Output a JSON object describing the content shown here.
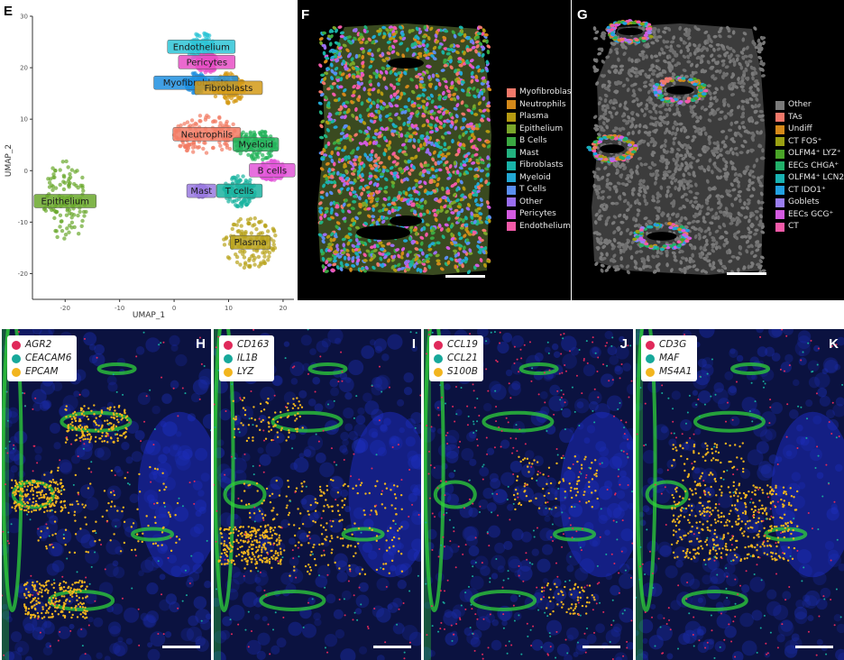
{
  "panel_e": {
    "label": "E",
    "chart_data": {
      "type": "scatter",
      "xlabel": "UMAP_1",
      "ylabel": "UMAP_2",
      "xlim": [
        -26,
        22
      ],
      "ylim": [
        -25,
        30
      ],
      "xticks": [
        "-20",
        "-10",
        "0",
        "10",
        "20"
      ],
      "yticks": [
        "-20",
        "-10",
        "0",
        "10",
        "20",
        "30"
      ],
      "clusters": [
        {
          "name": "Endothelium",
          "x": 5,
          "y": 24,
          "color": "#2ec4d6"
        },
        {
          "name": "Pericytes",
          "x": 6,
          "y": 21,
          "color": "#e84fc6"
        },
        {
          "name": "Myofibroblasts",
          "x": 4,
          "y": 17,
          "color": "#1f8fe0"
        },
        {
          "name": "Fibroblasts",
          "x": 10,
          "y": 16,
          "color": "#d49a16"
        },
        {
          "name": "Neutrophils",
          "x": 6,
          "y": 7,
          "color": "#f27a63"
        },
        {
          "name": "Myeloid",
          "x": 15,
          "y": 5,
          "color": "#22b35a"
        },
        {
          "name": "B cells",
          "x": 18,
          "y": 0,
          "color": "#e257d8"
        },
        {
          "name": "Mast",
          "x": 5,
          "y": -4,
          "color": "#9a7ae0"
        },
        {
          "name": "T cells",
          "x": 12,
          "y": -4,
          "color": "#1ab3a0"
        },
        {
          "name": "Plasma",
          "x": 14,
          "y": -14,
          "color": "#b8a21a"
        },
        {
          "name": "Epithelium",
          "x": -20,
          "y": -6,
          "color": "#6aa82c"
        }
      ]
    }
  },
  "panel_f": {
    "label": "F",
    "legend": [
      {
        "name": "Myofibroblasts",
        "color": "#f0786a"
      },
      {
        "name": "Neutrophils",
        "color": "#d4891a"
      },
      {
        "name": "Plasma",
        "color": "#b59a12"
      },
      {
        "name": "Epithelium",
        "color": "#7aa62a"
      },
      {
        "name": "B Cells",
        "color": "#3aa842"
      },
      {
        "name": "Mast",
        "color": "#22b280"
      },
      {
        "name": "Fibroblasts",
        "color": "#19b2a8"
      },
      {
        "name": "Myeloid",
        "color": "#22a8d4"
      },
      {
        "name": "T Cells",
        "color": "#5a8ef0"
      },
      {
        "name": "Other",
        "color": "#9a6ef0"
      },
      {
        "name": "Pericytes",
        "color": "#d35ae0"
      },
      {
        "name": "Endothelium",
        "color": "#f25aa8"
      }
    ]
  },
  "panel_g": {
    "label": "G",
    "legend": [
      {
        "name": "Other",
        "color": "#7a7a7a"
      },
      {
        "name": "TAs",
        "color": "#f0786a"
      },
      {
        "name": "Undiff",
        "color": "#d4891a"
      },
      {
        "name": "CT FOS⁺",
        "color": "#9aa012"
      },
      {
        "name": "OLFM4⁺ LYZ⁺",
        "color": "#4aa428"
      },
      {
        "name": "EECs CHGA⁺",
        "color": "#22b06a"
      },
      {
        "name": "OLFM4⁺ LCN2⁺",
        "color": "#19b2b2"
      },
      {
        "name": "CT IDO1⁺",
        "color": "#22a0e0"
      },
      {
        "name": "Goblets",
        "color": "#9a7ef0"
      },
      {
        "name": "EECs GCG⁺",
        "color": "#d35ae0"
      },
      {
        "name": "CT",
        "color": "#f25aa8"
      }
    ]
  },
  "fluor_colors": {
    "red": "#e0295a",
    "teal": "#17a89a",
    "yellow": "#f2b51e"
  },
  "panel_h": {
    "label": "H",
    "genes": [
      "AGR2",
      "CEACAM6",
      "EPCAM"
    ]
  },
  "panel_i": {
    "label": "I",
    "genes": [
      "CD163",
      "IL1B",
      "LYZ"
    ]
  },
  "panel_j": {
    "label": "J",
    "genes": [
      "CCL19",
      "CCL21",
      "S100B"
    ]
  },
  "panel_k": {
    "label": "K",
    "genes": [
      "CD3G",
      "MAF",
      "MS4A1"
    ]
  }
}
